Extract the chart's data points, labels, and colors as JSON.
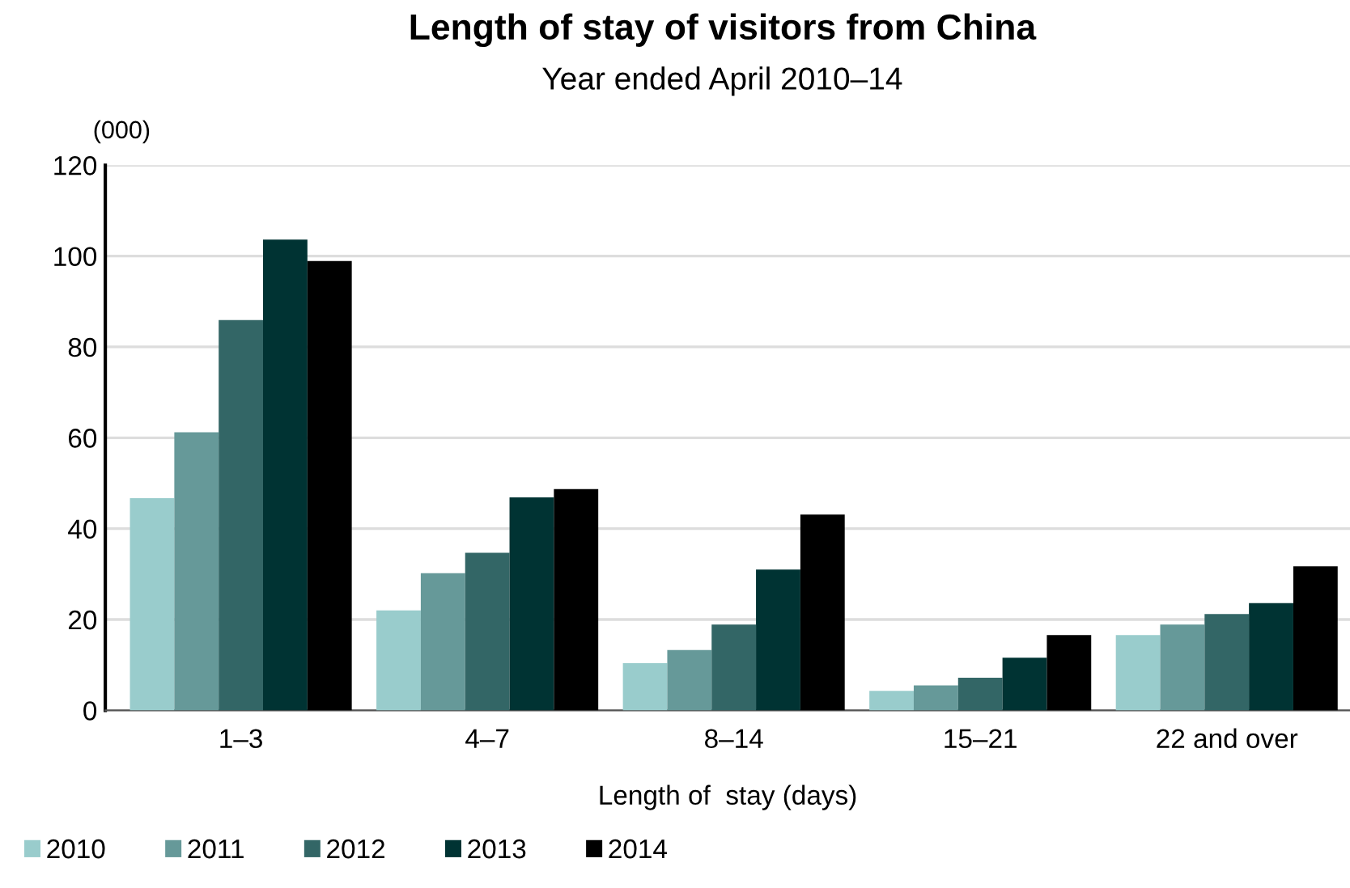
{
  "chart_data": {
    "type": "bar",
    "title": "Length of stay of visitors from China",
    "subtitle": "Year ended April 2010–14",
    "xlabel": "Length of  stay (days)",
    "ylabel": "(000)",
    "categories": [
      "1–3",
      "4–7",
      "8–14",
      "15–21",
      "22 and over"
    ],
    "series": [
      {
        "name": "2010",
        "color": "#99cccc",
        "values": [
          46.7,
          22.0,
          10.4,
          4.3,
          16.6
        ]
      },
      {
        "name": "2011",
        "color": "#669999",
        "values": [
          61.2,
          30.2,
          13.3,
          5.5,
          18.9
        ]
      },
      {
        "name": "2012",
        "color": "#336666",
        "values": [
          85.9,
          34.7,
          18.9,
          7.2,
          21.2
        ]
      },
      {
        "name": "2013",
        "color": "#003333",
        "values": [
          103.6,
          46.9,
          31.0,
          11.6,
          23.6
        ]
      },
      {
        "name": "2014",
        "color": "#000000",
        "values": [
          98.9,
          48.7,
          43.1,
          16.6,
          31.7
        ]
      }
    ],
    "ylim": [
      0,
      120
    ],
    "yticks": [
      0,
      20,
      40,
      60,
      80,
      100,
      120
    ],
    "grid": "y",
    "legend": "bottom left"
  }
}
